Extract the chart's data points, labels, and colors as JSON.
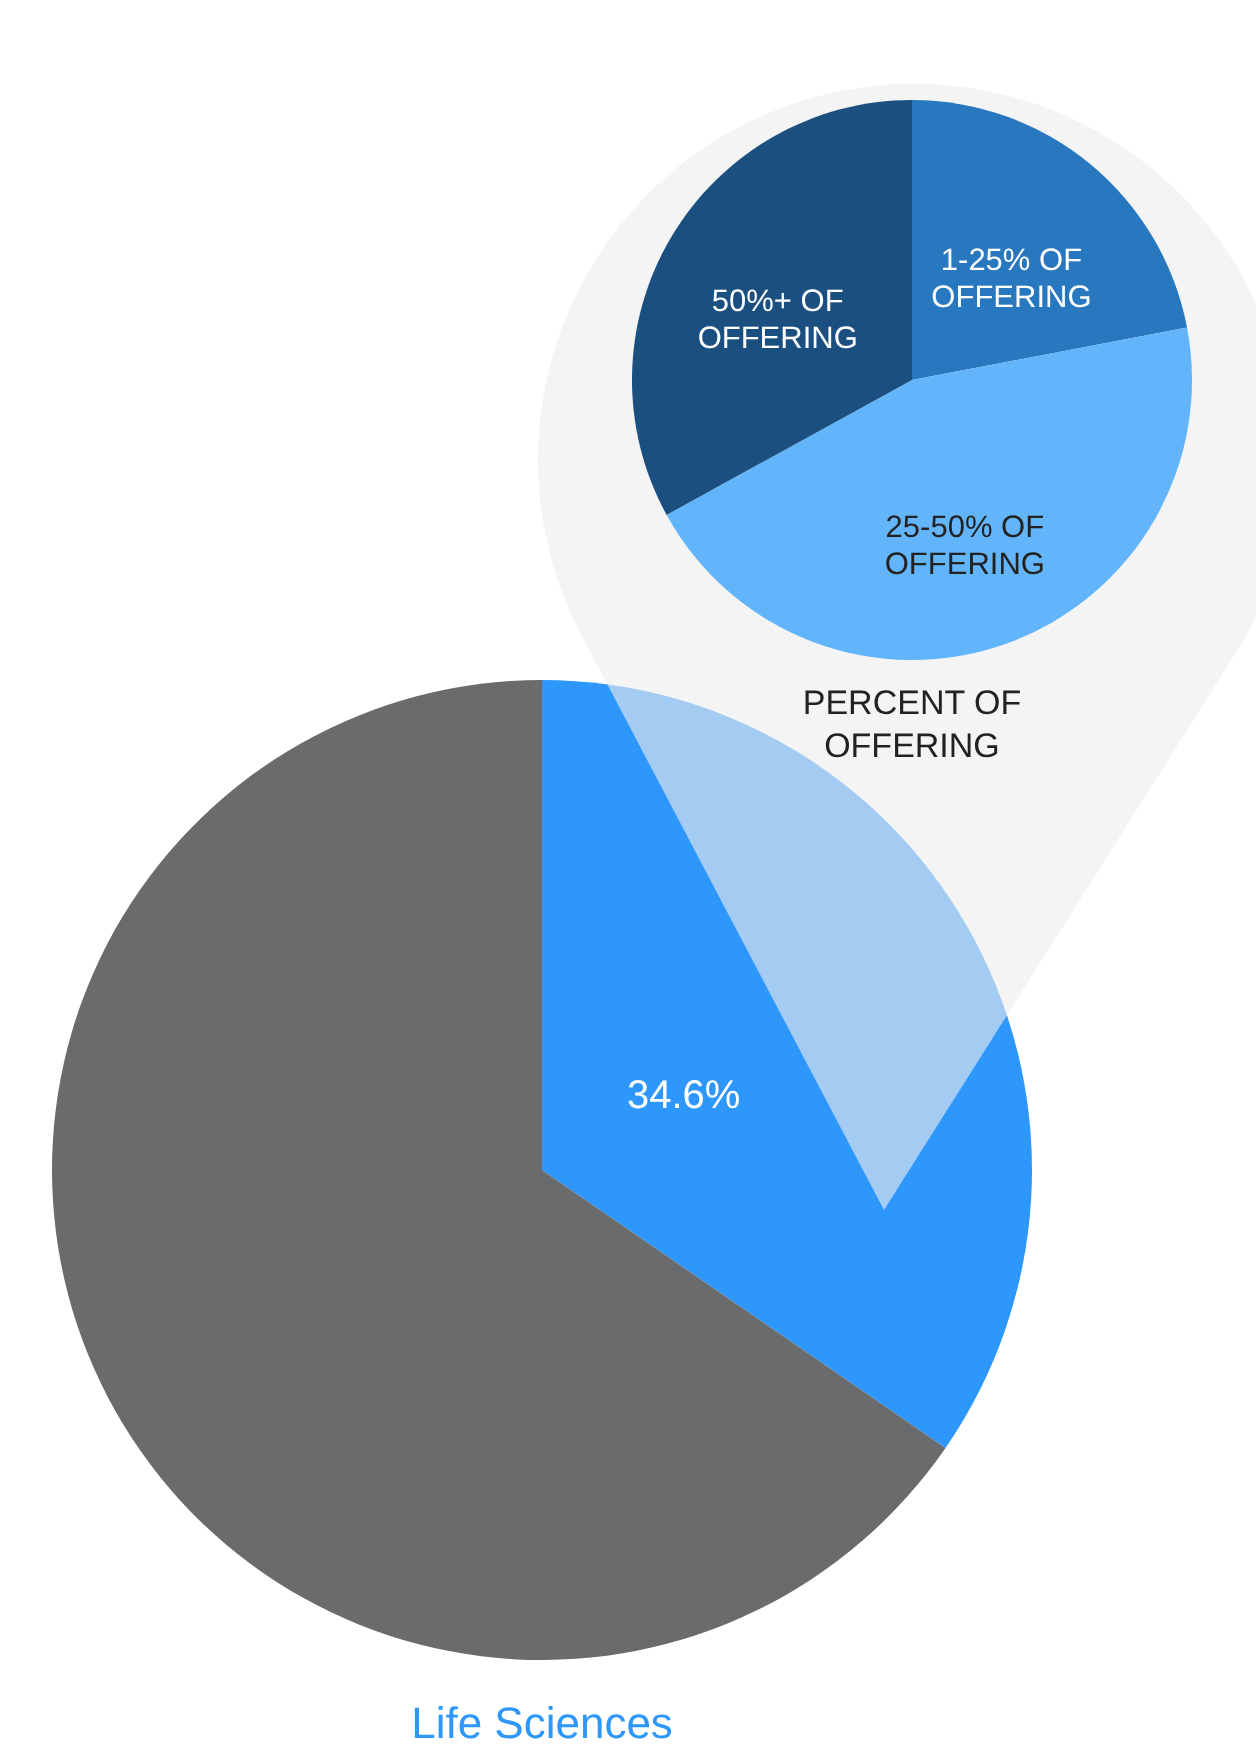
{
  "chart_data": [
    {
      "type": "pie",
      "title": "Life Sciences",
      "categories": [
        null,
        null
      ],
      "values": [
        34.6,
        65.4
      ],
      "colors": [
        "#2d97fb",
        "#6a6b6d"
      ],
      "value_labels": [
        "34.6%",
        null
      ]
    },
    {
      "type": "pie",
      "title": "PERCENT OF OFFERING",
      "categories": [
        "1-25% OF OFFERING",
        "25-50% OF OFFERING",
        "50%+ OF OFFERING"
      ],
      "values": [
        22,
        45,
        33
      ],
      "colors": [
        "#2878c0",
        "#62b5fb",
        "#1a4f80"
      ]
    }
  ]
}
